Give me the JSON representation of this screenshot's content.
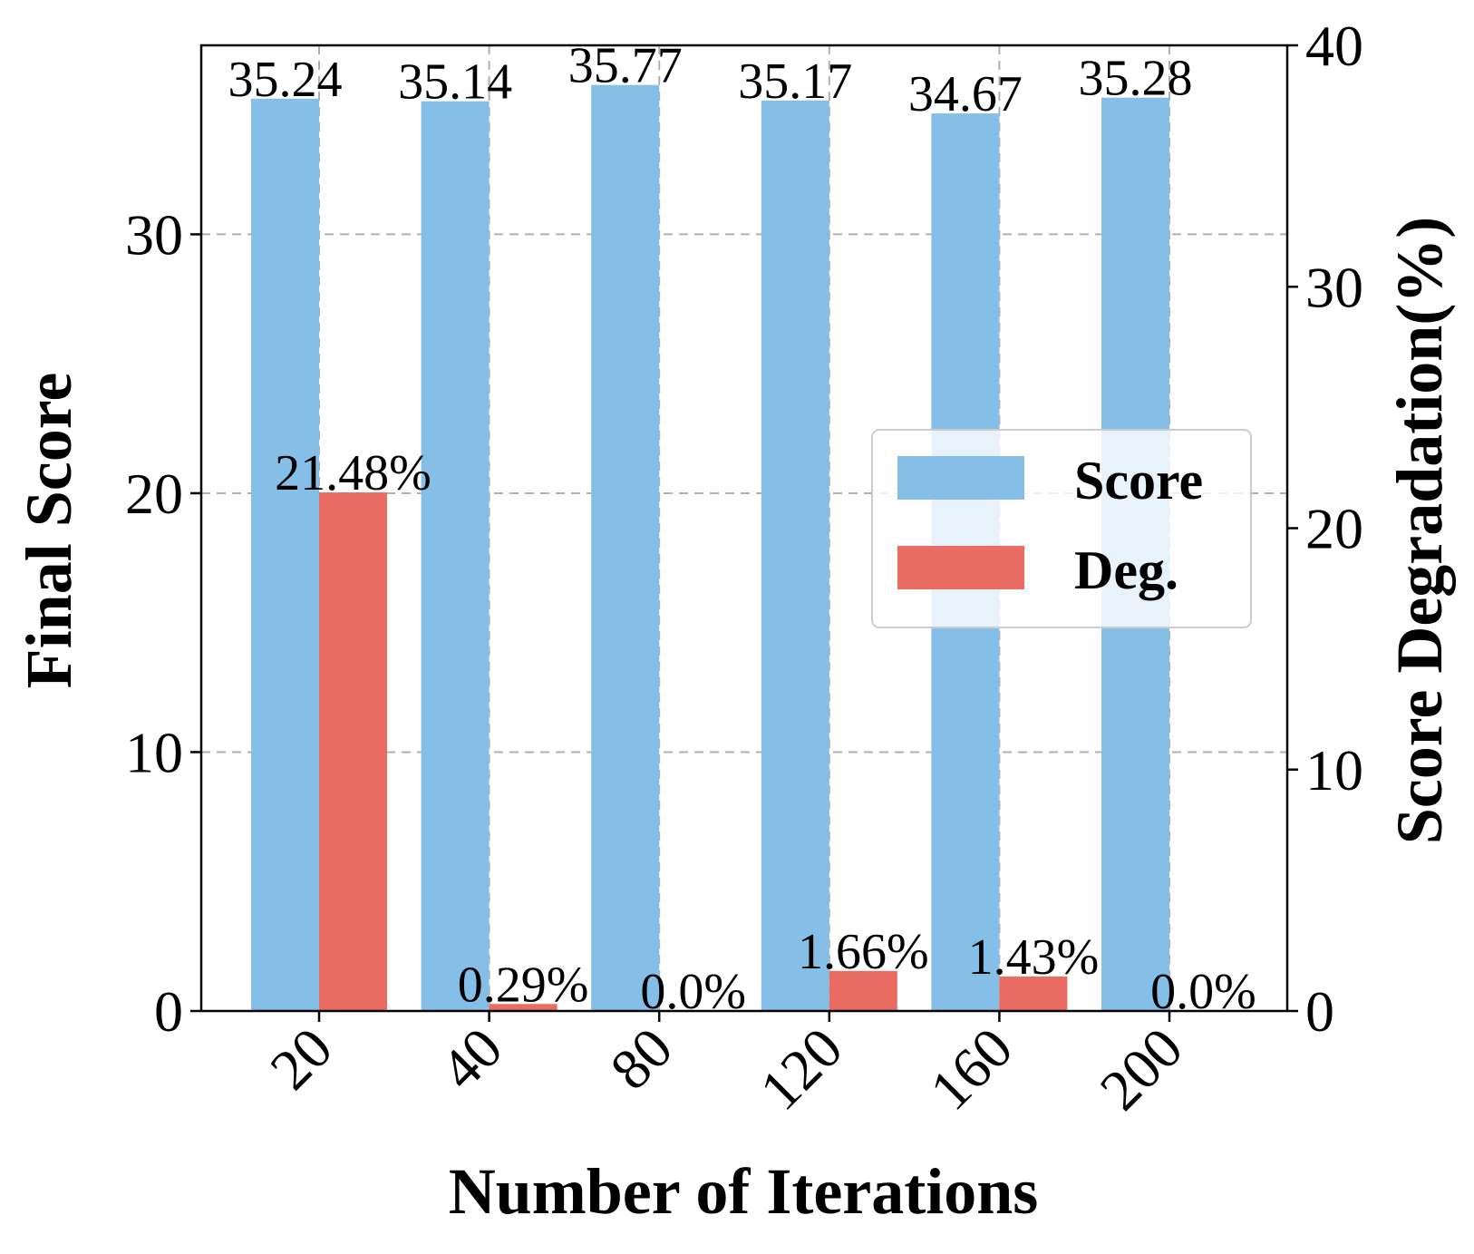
{
  "chart_data": {
    "type": "bar",
    "xlabel": "Number of Iterations",
    "ylabel": "Final Score",
    "y2label": "Score Degradation(%)",
    "categories": [
      "20",
      "40",
      "80",
      "120",
      "160",
      "200"
    ],
    "ylim": [
      0,
      37.3
    ],
    "y2lim": [
      0,
      40
    ],
    "yticks": [
      "0",
      "10",
      "20",
      "30"
    ],
    "y2ticks": [
      "0",
      "10",
      "20",
      "30",
      "40"
    ],
    "grid": true,
    "legend_position": "center-right",
    "series": [
      {
        "name": "Score",
        "axis": "left",
        "color": "#85bfe7",
        "values": [
          35.24,
          35.14,
          35.77,
          35.17,
          34.67,
          35.28
        ],
        "labels": [
          "35.24",
          "35.14",
          "35.77",
          "35.17",
          "34.67",
          "35.28"
        ]
      },
      {
        "name": "Deg.",
        "axis": "right",
        "color": "#eb6c62",
        "values": [
          21.48,
          0.29,
          0.0,
          1.66,
          1.43,
          0.0
        ],
        "labels": [
          "21.48%",
          "0.29%",
          "0.0%",
          "1.66%",
          "1.43%",
          "0.0%"
        ]
      }
    ]
  }
}
